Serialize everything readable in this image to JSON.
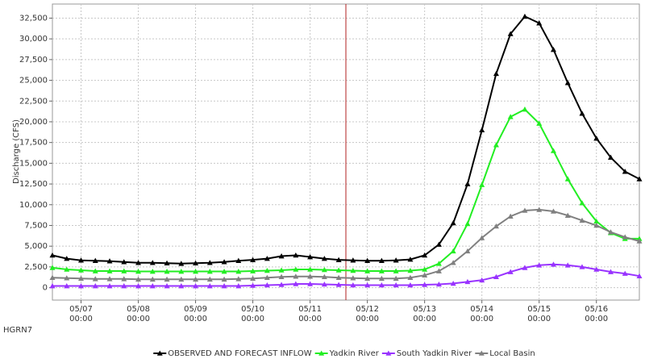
{
  "chart_data": {
    "type": "line",
    "y_label": "Discharge (CFS)",
    "station": "HGRN7",
    "categories": [
      null,
      null,
      "05/07\n00:00",
      null,
      null,
      null,
      "05/08\n00:00",
      null,
      null,
      null,
      "05/09\n00:00",
      null,
      null,
      null,
      "05/10\n00:00",
      null,
      null,
      null,
      "05/11\n00:00",
      null,
      null,
      null,
      "05/12\n00:00",
      null,
      null,
      null,
      "05/13\n00:00",
      null,
      null,
      null,
      "05/14\n00:00",
      null,
      null,
      null,
      "05/15\n00:00",
      null,
      null,
      null,
      "05/16\n00:00",
      null,
      null,
      null
    ],
    "series": [
      {
        "name": "OBSERVED AND FORECAST INFLOW",
        "color": "#000000",
        "values": [
          3900,
          3500,
          3300,
          3250,
          3200,
          3100,
          3000,
          3000,
          2950,
          2900,
          2950,
          3000,
          3100,
          3250,
          3350,
          3500,
          3800,
          3900,
          3700,
          3500,
          3350,
          3300,
          3250,
          3250,
          3300,
          3400,
          3900,
          5200,
          7800,
          12500,
          19000,
          25800,
          30600,
          32700,
          31900,
          28700,
          24700,
          21000,
          18000,
          15700,
          14000,
          13100
        ]
      },
      {
        "name": "Yadkin River",
        "color": "#22ee22",
        "values": [
          2400,
          2200,
          2100,
          2000,
          2000,
          2000,
          1950,
          1950,
          1950,
          1950,
          1950,
          1950,
          1950,
          1950,
          2000,
          2050,
          2100,
          2200,
          2200,
          2150,
          2100,
          2050,
          2000,
          2000,
          2000,
          2050,
          2200,
          2900,
          4400,
          7700,
          12400,
          17200,
          20600,
          21500,
          19800,
          16500,
          13100,
          10200,
          8000,
          6600,
          5900,
          5900
        ]
      },
      {
        "name": "South Yadkin River",
        "color": "#9933ff",
        "values": [
          200,
          200,
          200,
          200,
          200,
          200,
          200,
          200,
          200,
          200,
          200,
          200,
          200,
          200,
          250,
          300,
          350,
          450,
          450,
          400,
          350,
          300,
          300,
          300,
          300,
          300,
          350,
          400,
          500,
          700,
          900,
          1300,
          1900,
          2400,
          2700,
          2800,
          2700,
          2500,
          2200,
          1900,
          1700,
          1400
        ]
      },
      {
        "name": "Local Basin",
        "color": "#808080",
        "values": [
          1200,
          1150,
          1100,
          1050,
          1050,
          1050,
          1000,
          1000,
          1000,
          1000,
          1000,
          1000,
          1000,
          1050,
          1100,
          1200,
          1300,
          1350,
          1350,
          1300,
          1200,
          1150,
          1100,
          1100,
          1100,
          1200,
          1500,
          2000,
          3000,
          4400,
          6000,
          7400,
          8600,
          9300,
          9400,
          9200,
          8700,
          8100,
          7500,
          6700,
          6100,
          5600
        ]
      }
    ],
    "ylim": [
      -1500,
      34200
    ],
    "yticks": [
      0,
      {
        "value": 2500,
        "label": "2,500"
      },
      {
        "value": 5000,
        "label": "5,000"
      },
      {
        "value": 7500,
        "label": "7,500"
      },
      {
        "value": 10000,
        "label": "10,000"
      },
      {
        "value": 12500,
        "label": "12,500"
      },
      {
        "value": 15000,
        "label": "15,000"
      },
      {
        "value": 17500,
        "label": "17,500"
      },
      {
        "value": 20000,
        "label": "20,000"
      },
      {
        "value": 22500,
        "label": "22,500"
      },
      {
        "value": 25000,
        "label": "25,000"
      },
      {
        "value": 27500,
        "label": "27,500"
      },
      {
        "value": 30000,
        "label": "30,000"
      },
      {
        "value": 32500,
        "label": "32,500"
      }
    ],
    "grid": true,
    "legend": "bottom",
    "now_line": {
      "position": 20.5,
      "color": "#b22222"
    }
  }
}
